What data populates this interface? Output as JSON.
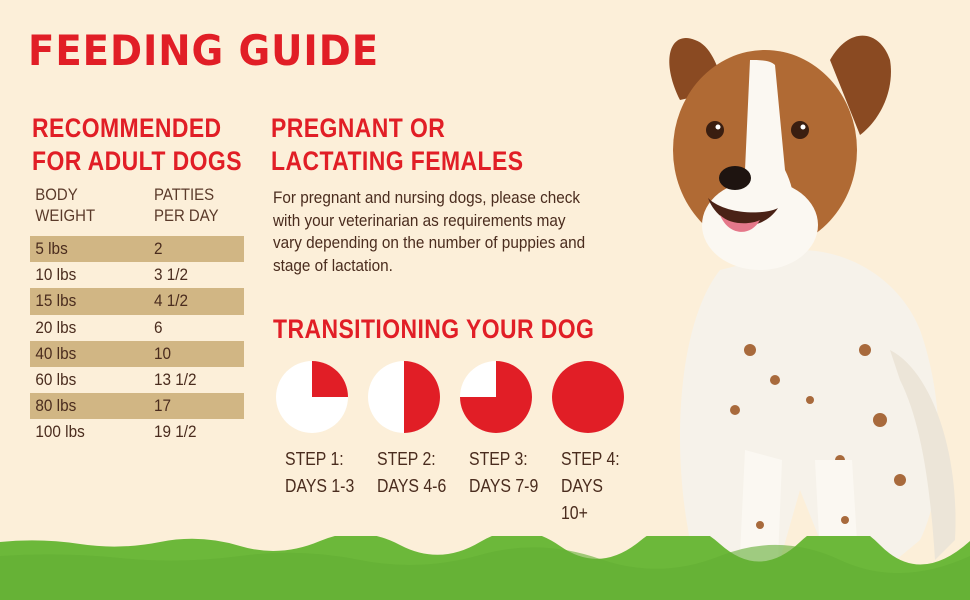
{
  "title": "FEEDING GUIDE",
  "adult": {
    "heading_line1": "RECOMMENDED",
    "heading_line2": "FOR ADULT DOGS",
    "col1": "BODY\nWEIGHT",
    "col2": "PATTIES\nPER DAY",
    "rows": [
      {
        "weight": "5 lbs",
        "patties": "2"
      },
      {
        "weight": "10 lbs",
        "patties": "3 1/2"
      },
      {
        "weight": "15 lbs",
        "patties": "4 1/2"
      },
      {
        "weight": "20 lbs",
        "patties": "6"
      },
      {
        "weight": "40 lbs",
        "patties": "10"
      },
      {
        "weight": "60 lbs",
        "patties": "13 1/2"
      },
      {
        "weight": "80 lbs",
        "patties": "17"
      },
      {
        "weight": "100 lbs",
        "patties": "19 1/2"
      }
    ]
  },
  "pregnant": {
    "heading_line1": "PREGNANT OR",
    "heading_line2": "LACTATING FEMALES",
    "text": "For pregnant and nursing dogs, please check with your veterinarian as requirements may vary depending on the number of puppies and stage of lactation."
  },
  "transition": {
    "heading": "TRANSITIONING YOUR DOG",
    "steps": [
      {
        "label": "STEP 1:\nDAYS 1-3",
        "fraction": 0.25
      },
      {
        "label": "STEP 2:\nDAYS 4-6",
        "fraction": 0.5
      },
      {
        "label": "STEP 3:\nDAYS 7-9",
        "fraction": 0.75
      },
      {
        "label": "STEP 4:\nDAYS 10+",
        "fraction": 1.0
      }
    ]
  },
  "colors": {
    "accent": "#e11e26",
    "background": "#fcefd9",
    "row_shade": "#d1b684",
    "text": "#4a2c1e",
    "grass": "#6cb83a"
  },
  "images": {
    "dog": "dog-photo"
  }
}
